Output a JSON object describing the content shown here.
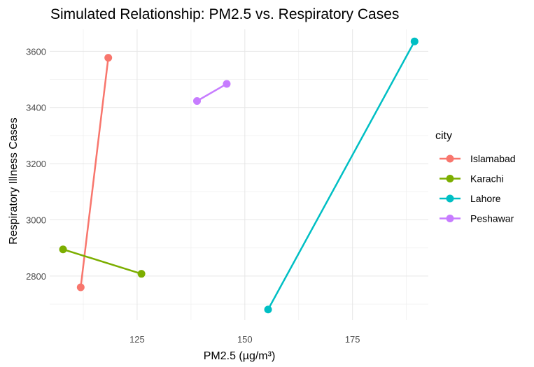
{
  "chart_data": {
    "type": "line",
    "title": "Simulated Relationship: PM2.5 vs. Respiratory Cases",
    "xlabel": "PM2.5 (µg/m³)",
    "ylabel": "Respiratory Illness Cases",
    "xlim": [
      104.7,
      192.6
    ],
    "ylim": [
      2643,
      3678
    ],
    "x_ticks": [
      125,
      150,
      175
    ],
    "x_tick_labels": [
      "125",
      "150",
      "175"
    ],
    "y_ticks": [
      2800,
      3000,
      3200,
      3400,
      3600
    ],
    "y_tick_labels": [
      "2800",
      "3000",
      "3200",
      "3400",
      "3600"
    ],
    "grid": true,
    "legend": {
      "title": "city",
      "position": "right"
    },
    "series": [
      {
        "name": "Islamabad",
        "color": "#F8766D",
        "points": [
          {
            "x": 111.9,
            "y": 2760
          },
          {
            "x": 118.3,
            "y": 3577
          }
        ]
      },
      {
        "name": "Karachi",
        "color": "#7CAE00",
        "points": [
          {
            "x": 107.8,
            "y": 2895
          },
          {
            "x": 126.0,
            "y": 2808
          }
        ]
      },
      {
        "name": "Lahore",
        "color": "#00BFC4",
        "points": [
          {
            "x": 155.4,
            "y": 2681
          },
          {
            "x": 189.4,
            "y": 3635
          }
        ]
      },
      {
        "name": "Peshawar",
        "color": "#C77CFF",
        "points": [
          {
            "x": 138.9,
            "y": 3423
          },
          {
            "x": 145.8,
            "y": 3484
          }
        ]
      }
    ]
  }
}
